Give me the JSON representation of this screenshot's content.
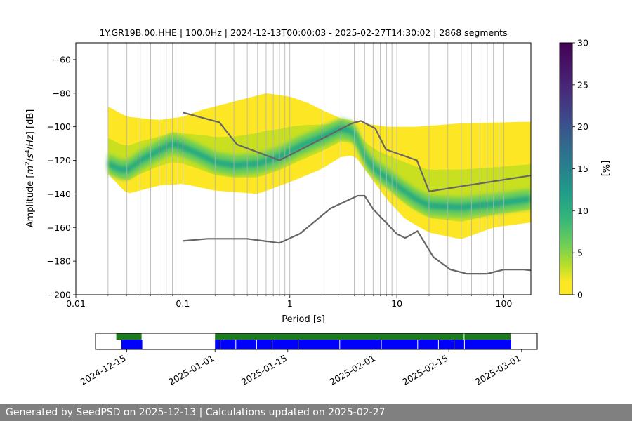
{
  "chart_data": [
    {
      "type": "heatmap",
      "title": "1Y.GR19B.00.HHE | 100.0Hz | 2024-12-13T00:00:03 - 2025-02-27T14:30:02 | 2868 segments",
      "xlabel": "Period [s]",
      "ylabel_parts": [
        "Amplitude [",
        "m",
        "2",
        "/",
        "s",
        "4",
        "/",
        "Hz",
        "] [dB]"
      ],
      "x_scale": "log",
      "xlim": [
        0.01,
        179
      ],
      "ylim": [
        -200,
        -50
      ],
      "x_ticks": [
        {
          "value": 0.01,
          "label": "0.01"
        },
        {
          "value": 0.1,
          "label": "0.1"
        },
        {
          "value": 1,
          "label": "1"
        },
        {
          "value": 10,
          "label": "10"
        },
        {
          "value": 100,
          "label": "100"
        }
      ],
      "y_ticks": [
        {
          "value": -60,
          "label": "−60"
        },
        {
          "value": -80,
          "label": "−80"
        },
        {
          "value": -100,
          "label": "−100"
        },
        {
          "value": -120,
          "label": "−120"
        },
        {
          "value": -140,
          "label": "−140"
        },
        {
          "value": -160,
          "label": "−160"
        },
        {
          "value": -180,
          "label": "−180"
        },
        {
          "value": -200,
          "label": "−200"
        }
      ],
      "grid": "vertical lines at x tick values and minor decades",
      "colormap": "viridis_r",
      "colorbar": {
        "label": "[%]",
        "range": [
          0,
          30
        ],
        "ticks": [
          {
            "value": 0,
            "label": "0"
          },
          {
            "value": 5,
            "label": "5"
          },
          {
            "value": 10,
            "label": "10"
          },
          {
            "value": 15,
            "label": "15"
          },
          {
            "value": 20,
            "label": "20"
          },
          {
            "value": 25,
            "label": "25"
          },
          {
            "value": 30,
            "label": "30"
          }
        ]
      },
      "ppsd_median": [
        [
          0.02,
          -122
        ],
        [
          0.025,
          -125
        ],
        [
          0.03,
          -126
        ],
        [
          0.04,
          -120
        ],
        [
          0.06,
          -114
        ],
        [
          0.08,
          -110
        ],
        [
          0.1,
          -112
        ],
        [
          0.15,
          -117
        ],
        [
          0.2,
          -121
        ],
        [
          0.3,
          -123
        ],
        [
          0.5,
          -122
        ],
        [
          0.8,
          -118
        ],
        [
          1.2,
          -112
        ],
        [
          2,
          -106
        ],
        [
          3,
          -101
        ],
        [
          4,
          -103
        ],
        [
          5,
          -118
        ],
        [
          6,
          -124
        ],
        [
          7,
          -128
        ],
        [
          8,
          -130
        ],
        [
          10,
          -135
        ],
        [
          15,
          -143
        ],
        [
          20,
          -147
        ],
        [
          40,
          -148
        ],
        [
          80,
          -146
        ],
        [
          179,
          -143
        ]
      ],
      "ppsd_band_upper": [
        [
          0.02,
          -88
        ],
        [
          0.03,
          -94
        ],
        [
          0.06,
          -96
        ],
        [
          0.1,
          -94
        ],
        [
          0.15,
          -90
        ],
        [
          0.3,
          -85
        ],
        [
          0.6,
          -80
        ],
        [
          1,
          -82
        ],
        [
          1.5,
          -86
        ],
        [
          2,
          -90
        ],
        [
          3,
          -95
        ],
        [
          5,
          -98
        ],
        [
          8,
          -100
        ],
        [
          15,
          -100
        ],
        [
          40,
          -98
        ],
        [
          179,
          -97
        ]
      ],
      "ppsd_band_lower": [
        [
          0.02,
          -128
        ],
        [
          0.03,
          -140
        ],
        [
          0.06,
          -135
        ],
        [
          0.1,
          -134
        ],
        [
          0.2,
          -138
        ],
        [
          0.5,
          -140
        ],
        [
          1,
          -133
        ],
        [
          2,
          -125
        ],
        [
          3,
          -118
        ],
        [
          4,
          -117
        ],
        [
          5,
          -125
        ],
        [
          8,
          -143
        ],
        [
          12,
          -155
        ],
        [
          20,
          -163
        ],
        [
          40,
          -167
        ],
        [
          80,
          -160
        ],
        [
          179,
          -157
        ]
      ],
      "series": [
        {
          "name": "NHNM",
          "color": "#666666",
          "x": [
            0.1,
            0.22,
            0.32,
            0.8,
            3.8,
            4.6,
            6.3,
            7.9,
            15.4,
            20,
            179
          ],
          "y": [
            -91.5,
            -97.4,
            -110.5,
            -120,
            -98,
            -96.5,
            -101,
            -113.5,
            -120,
            -138.5,
            -129
          ]
        },
        {
          "name": "NLNM",
          "color": "#666666",
          "x": [
            0.1,
            0.17,
            0.4,
            0.8,
            1.24,
            2.4,
            4.3,
            5,
            6,
            10,
            12,
            15.6,
            21.9,
            31.6,
            45,
            70,
            101,
            154,
            179
          ],
          "y": [
            -168,
            -166.7,
            -166.7,
            -169.2,
            -163.7,
            -148.6,
            -141.1,
            -141.1,
            -149,
            -163.8,
            -166.2,
            -162.1,
            -177.5,
            -185,
            -187.5,
            -187.5,
            -185,
            -185,
            -185.5
          ]
        }
      ]
    },
    {
      "type": "coverage-timeline",
      "x_ticks": [
        {
          "date": "2024-12-15",
          "label": "2024-12-15"
        },
        {
          "date": "2025-01-01",
          "label": "2025-01-01"
        },
        {
          "date": "2025-01-15",
          "label": "2025-01-15"
        },
        {
          "date": "2025-02-01",
          "label": "2025-02-01"
        },
        {
          "date": "2025-02-15",
          "label": "2025-02-15"
        },
        {
          "date": "2025-03-01",
          "label": "2025-03-01"
        }
      ],
      "xlim": [
        "2024-12-09",
        "2025-03-04"
      ],
      "data_color": "#1e7a1e",
      "psd_color": "#0000ff",
      "data_segments": [
        [
          "2024-12-13",
          "2024-12-18"
        ],
        [
          "2025-01-01",
          "2025-02-18"
        ],
        [
          "2025-02-18",
          "2025-02-27"
        ]
      ],
      "psd_segments": [
        [
          "2024-12-14",
          "2024-12-18"
        ],
        [
          "2025-01-01",
          "2025-02-27"
        ]
      ],
      "psd_gaps": [
        "2025-01-02",
        "2025-01-05",
        "2025-01-09",
        "2025-01-12",
        "2025-01-17",
        "2025-01-25",
        "2025-02-02",
        "2025-02-09",
        "2025-02-13",
        "2025-02-16",
        "2025-02-18"
      ]
    }
  ],
  "footer": {
    "text": "Generated by SeedPSD on 2025-12-13 | Calculations updated on 2025-02-27"
  }
}
